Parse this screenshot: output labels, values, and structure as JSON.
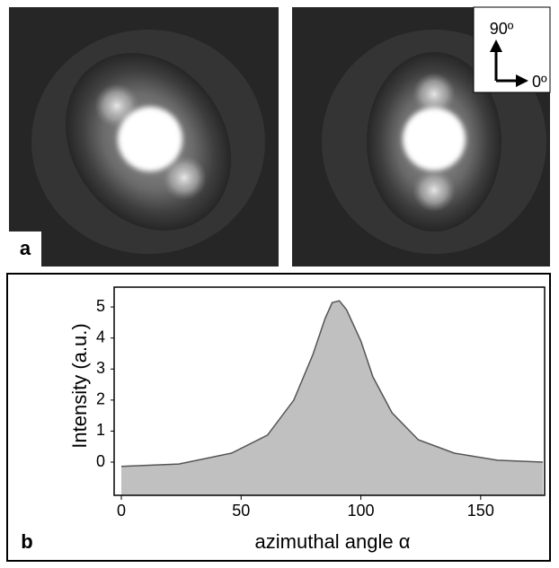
{
  "figure": {
    "panel_labels": [
      "a",
      "b"
    ],
    "arrow_labels": [
      "90º",
      "0º"
    ]
  },
  "chart_data": {
    "type": "area",
    "ylabel": "Intensity (a.u.)",
    "xlabel": "azimuthal angle α",
    "x": [
      0,
      24,
      46,
      61,
      72,
      80,
      85,
      88,
      91,
      94,
      100,
      105,
      113,
      124,
      139,
      157,
      176
    ],
    "values": [
      -0.14,
      -0.06,
      0.29,
      0.87,
      2.0,
      3.47,
      4.62,
      5.14,
      5.2,
      4.91,
      3.9,
      2.75,
      1.59,
      0.72,
      0.29,
      0.06,
      0
    ],
    "color": "#c0c0c0",
    "xlim": [
      -3,
      176.7
    ],
    "ylim": [
      -1.07,
      5.64
    ],
    "xticks": [
      0,
      50,
      100,
      150
    ],
    "yticks": [
      0,
      1,
      2,
      3,
      4,
      5
    ]
  }
}
